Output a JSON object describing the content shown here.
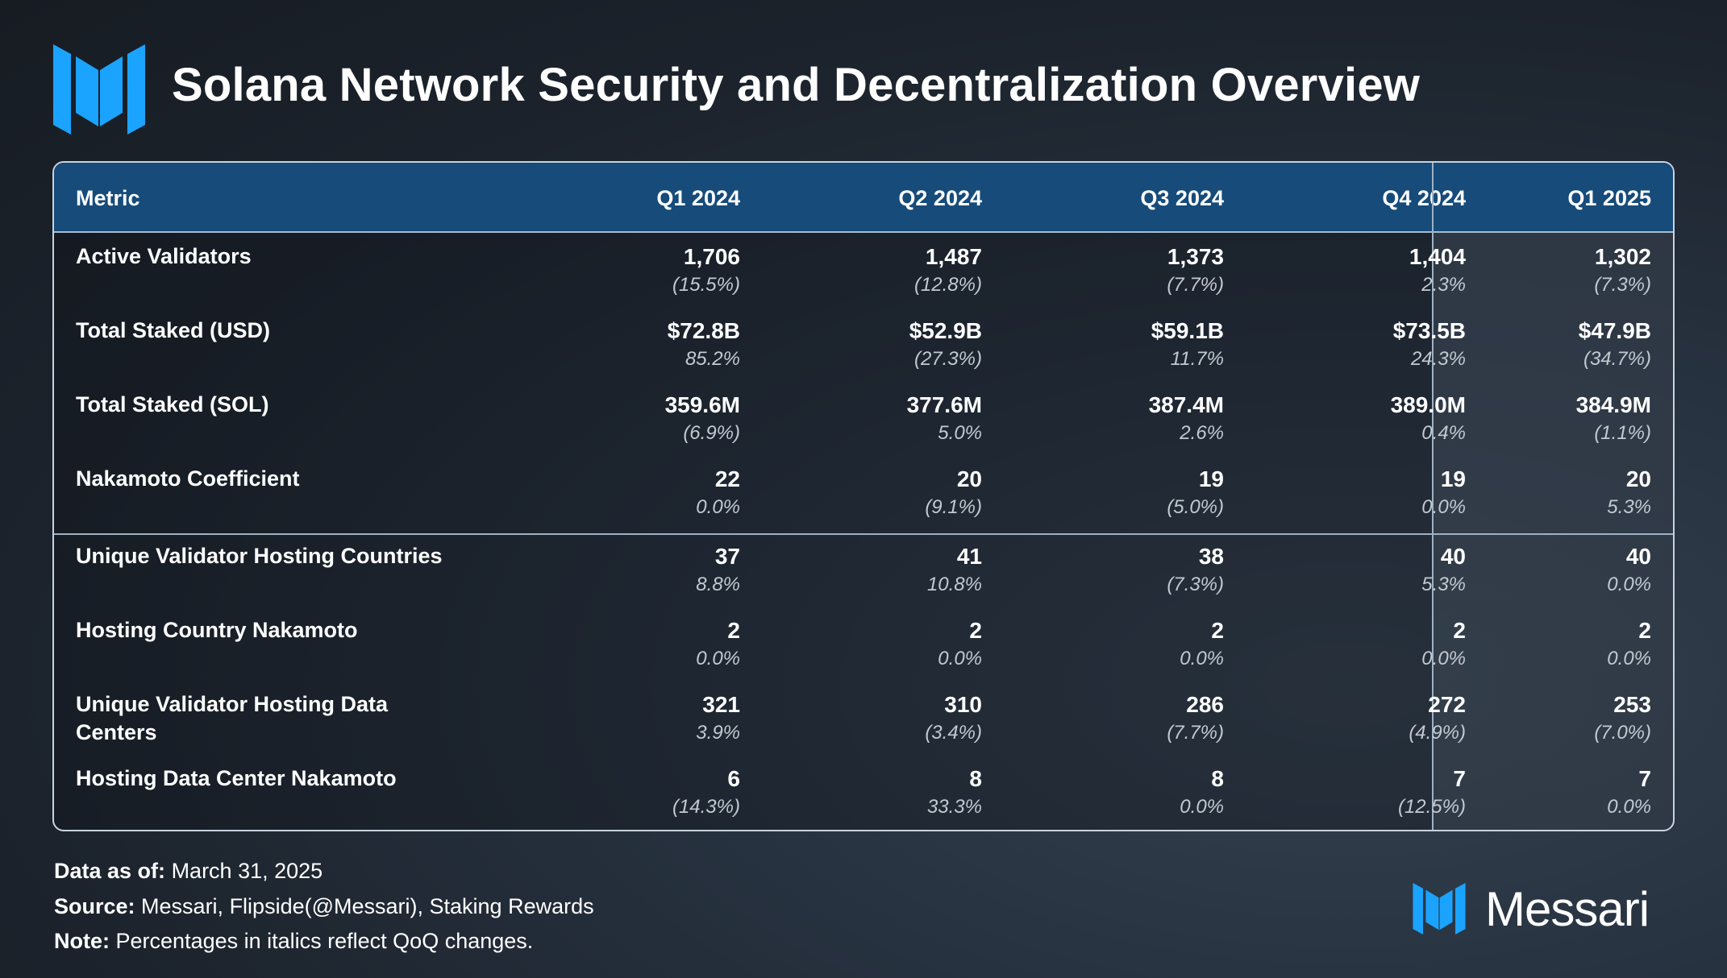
{
  "header": {
    "title": "Solana Network Security and Decentralization Overview"
  },
  "colors": {
    "accent": "#1aa3ff",
    "header_bg": "#164b7a",
    "background": "#1c232c"
  },
  "chart_data": {
    "type": "table",
    "columns": [
      "Metric",
      "Q1 2024",
      "Q2 2024",
      "Q3 2024",
      "Q4 2024",
      "Q1 2025"
    ],
    "rows": [
      {
        "metric": "Active Validators",
        "values": [
          "1,706",
          "1,487",
          "1,373",
          "1,404",
          "1,302"
        ],
        "changes": [
          "(15.5%)",
          "(12.8%)",
          "(7.7%)",
          "2.3%",
          "(7.3%)"
        ]
      },
      {
        "metric": "Total Staked (USD)",
        "values": [
          "$72.8B",
          "$52.9B",
          "$59.1B",
          "$73.5B",
          "$47.9B"
        ],
        "changes": [
          "85.2%",
          "(27.3%)",
          "11.7%",
          "24.3%",
          "(34.7%)"
        ]
      },
      {
        "metric": "Total Staked (SOL)",
        "values": [
          "359.6M",
          "377.6M",
          "387.4M",
          "389.0M",
          "384.9M"
        ],
        "changes": [
          "(6.9%)",
          "5.0%",
          "2.6%",
          "0.4%",
          "(1.1%)"
        ]
      },
      {
        "metric": "Nakamoto Coefficient",
        "values": [
          "22",
          "20",
          "19",
          "19",
          "20"
        ],
        "changes": [
          "0.0%",
          "(9.1%)",
          "(5.0%)",
          "0.0%",
          "5.3%"
        ]
      },
      {
        "metric": "Unique Validator Hosting Countries",
        "values": [
          "37",
          "41",
          "38",
          "40",
          "40"
        ],
        "changes": [
          "8.8%",
          "10.8%",
          "(7.3%)",
          "5.3%",
          "0.0%"
        ]
      },
      {
        "metric": "Hosting Country Nakamoto",
        "values": [
          "2",
          "2",
          "2",
          "2",
          "2"
        ],
        "changes": [
          "0.0%",
          "0.0%",
          "0.0%",
          "0.0%",
          "0.0%"
        ]
      },
      {
        "metric": "Unique Validator Hosting Data Centers",
        "values": [
          "321",
          "310",
          "286",
          "272",
          "253"
        ],
        "changes": [
          "3.9%",
          "(3.4%)",
          "(7.7%)",
          "(4.9%)",
          "(7.0%)"
        ]
      },
      {
        "metric": "Hosting Data Center Nakamoto",
        "values": [
          "6",
          "8",
          "8",
          "7",
          "7"
        ],
        "changes": [
          "(14.3%)",
          "33.3%",
          "0.0%",
          "(12.5%)",
          "0.0%"
        ]
      }
    ]
  },
  "footer": {
    "data_as_of_label": "Data as of:",
    "data_as_of_value": "March 31, 2025",
    "source_label": "Source:",
    "source_value": "Messari, Flipside(@Messari), Staking Rewards",
    "note_label": "Note:",
    "note_value": "Percentages in italics reflect QoQ changes."
  },
  "brand": {
    "name": "Messari",
    "logo_icon": "messari-logo-icon"
  }
}
